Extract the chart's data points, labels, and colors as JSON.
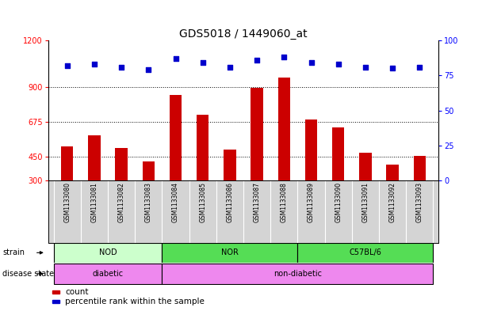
{
  "title": "GDS5018 / 1449060_at",
  "samples": [
    "GSM1133080",
    "GSM1133081",
    "GSM1133082",
    "GSM1133083",
    "GSM1133084",
    "GSM1133085",
    "GSM1133086",
    "GSM1133087",
    "GSM1133088",
    "GSM1133089",
    "GSM1133090",
    "GSM1133091",
    "GSM1133092",
    "GSM1133093"
  ],
  "counts": [
    520,
    590,
    510,
    420,
    850,
    720,
    500,
    895,
    960,
    690,
    640,
    480,
    400,
    460
  ],
  "percentiles": [
    82,
    83,
    81,
    79,
    87,
    84,
    81,
    86,
    88,
    84,
    83,
    81,
    80,
    81
  ],
  "ylim_left": [
    300,
    1200
  ],
  "ylim_right": [
    0,
    100
  ],
  "yticks_left": [
    300,
    450,
    675,
    900,
    1200
  ],
  "yticks_right": [
    0,
    25,
    50,
    75,
    100
  ],
  "bar_color": "#cc0000",
  "dot_color": "#0000cc",
  "bg_color": "#ffffff",
  "nod_color": "#ccffcc",
  "nor_color": "#55dd55",
  "c57_color": "#55dd55",
  "diabetic_color": "#ee88ee",
  "nondiabetic_color": "#ee88ee",
  "sample_bg_color": "#d4d4d4",
  "strain_label": "strain",
  "disease_label": "disease state",
  "legend_bar_label": "count",
  "legend_dot_label": "percentile rank within the sample",
  "title_fontsize": 10,
  "tick_fontsize": 7,
  "bar_width": 0.45
}
